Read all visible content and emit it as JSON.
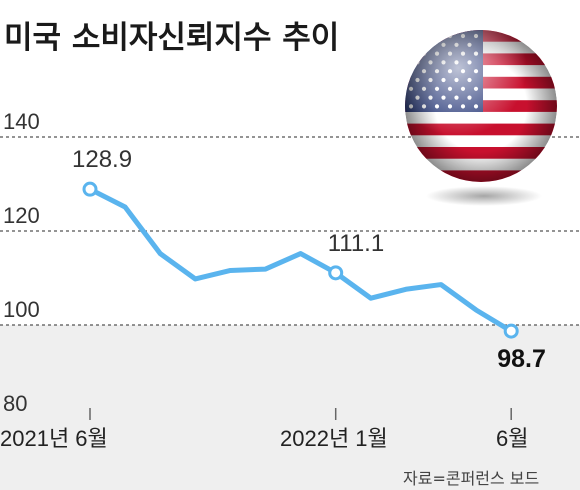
{
  "title": "미국 소비자신뢰지수 추이",
  "source": "자료=콘퍼런스 보드",
  "chart_data": {
    "type": "line",
    "title": "미국 소비자신뢰지수 추이",
    "x": [
      "2021-06",
      "2021-07",
      "2021-08",
      "2021-09",
      "2021-10",
      "2021-11",
      "2021-12",
      "2022-01",
      "2022-02",
      "2022-03",
      "2022-04",
      "2022-05",
      "2022-06"
    ],
    "series": [
      {
        "values": [
          128.9,
          125.1,
          115.2,
          109.8,
          111.6,
          111.9,
          115.2,
          111.1,
          105.7,
          107.6,
          108.6,
          103.2,
          98.7
        ]
      }
    ],
    "yticks": [
      80,
      100,
      120,
      140
    ],
    "ylim": [
      80,
      140
    ],
    "xtick_labels": [
      {
        "x": "2021-06",
        "label": "2021년 6월"
      },
      {
        "x": "2022-01",
        "label": "2022년 1월"
      },
      {
        "x": "2022-06",
        "label": "6월"
      }
    ],
    "data_labels": [
      {
        "x": "2021-06",
        "label": "128.9"
      },
      {
        "x": "2022-01",
        "label": "111.1"
      },
      {
        "x": "2022-06",
        "label": "98.7"
      }
    ],
    "line_color": "#5ab4ee",
    "shade_color": "#efefef",
    "grid": "dashed"
  }
}
